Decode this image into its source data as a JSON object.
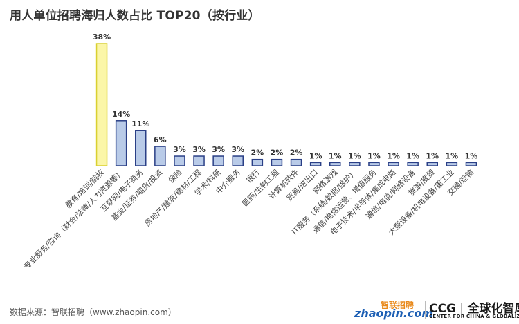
{
  "title": "用人单位招聘海归人数占比 TOP20（按行业）",
  "source": "数据来源：智联招聘（www.zhaopin.com）",
  "logos": {
    "zhaopin_cn": "智联招聘",
    "zhaopin_en": "zhaopin.com",
    "ccg_abbr": "CCG",
    "ccg_cn": "全球化智库",
    "ccg_en": "CENTER FOR CHINA & GLOBALIZATION"
  },
  "colors": {
    "bar_fill": "#b9cbe8",
    "bar_stroke": "#2a3f86",
    "highlight_fill": "#fbf6a8",
    "highlight_stroke": "#d9d030",
    "axis": "#bbbbbb"
  },
  "chart_data": {
    "type": "bar",
    "title": "用人单位招聘海归人数占比 TOP20（按行业）",
    "xlabel": "",
    "ylabel": "",
    "ylim": [
      0,
      38
    ],
    "grid": false,
    "legend": "none",
    "highlight_index": 0,
    "categories": [
      "教育/培训/院校",
      "专业服务/咨询（财会/法律/人力资源等）",
      "互联网/电子商务",
      "基金/证券/期货/投资",
      "保险",
      "房地产/建筑/建材/工程",
      "学术/科研",
      "中介服务",
      "银行",
      "医药/生物工程",
      "计算机软件",
      "贸易/进出口",
      "网络游戏",
      "IT服务（系统/数据/维护）",
      "通信/电信运营、增值服务",
      "电子技术/半导体/集成电路",
      "通信/电信/网络设备",
      "旅游/度假",
      "大型设备/机电设备/重工业",
      "交通/运输"
    ],
    "values": [
      38,
      14,
      11,
      6,
      3,
      3,
      3,
      3,
      2,
      2,
      2,
      1,
      1,
      1,
      1,
      1,
      1,
      1,
      1,
      1
    ],
    "value_labels": [
      "38%",
      "14%",
      "11%",
      "6%",
      "3%",
      "3%",
      "3%",
      "3%",
      "2%",
      "2%",
      "2%",
      "1%",
      "1%",
      "1%",
      "1%",
      "1%",
      "1%",
      "1%",
      "1%",
      "1%"
    ]
  }
}
